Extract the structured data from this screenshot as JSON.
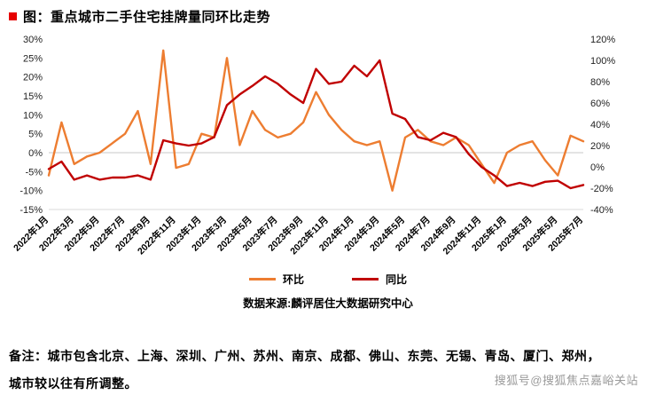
{
  "page": {
    "title": "图：重点城市二手住宅挂牌量同环比走势",
    "source": "数据来源:麟评居住大数据研究中心",
    "note_line1": "备注：城市包含北京、上海、深圳、广州、苏州、南京、成都、佛山、东莞、无锡、青岛、厦门、郑州，",
    "note_line2": "城市较以往有所调整。",
    "watermark": "搜狐号@搜狐焦点嘉峪关站"
  },
  "colors": {
    "title_bullet": "#e60000",
    "mom_line": "#ED7D31",
    "yoy_line": "#C00000",
    "zero_line": "#c9c9c9",
    "axis_line": "#d9d9d9",
    "watermark": "#9b9b9b"
  },
  "chart_data": {
    "type": "line",
    "title": "重点城市二手住宅挂牌量同环比走势",
    "legend_position": "bottom",
    "grid": "zero-line-only",
    "x_tick_every": 2,
    "categories": [
      "2022年1月",
      "2022年2月",
      "2022年3月",
      "2022年4月",
      "2022年5月",
      "2022年6月",
      "2022年7月",
      "2022年8月",
      "2022年9月",
      "2022年10月",
      "2022年11月",
      "2022年12月",
      "2023年1月",
      "2023年2月",
      "2023年3月",
      "2023年4月",
      "2023年5月",
      "2023年6月",
      "2023年7月",
      "2023年8月",
      "2023年9月",
      "2023年10月",
      "2023年11月",
      "2023年12月",
      "2024年1月",
      "2024年2月",
      "2024年3月",
      "2024年4月",
      "2024年5月",
      "2024年6月",
      "2024年7月",
      "2024年8月",
      "2024年9月",
      "2024年10月",
      "2024年11月",
      "2024年12月",
      "2025年1月",
      "2025年2月",
      "2025年3月",
      "2025年4月",
      "2025年5月",
      "2025年6月",
      "2025年7月"
    ],
    "left_axis": {
      "min": -15,
      "max": 30,
      "ticks": [
        "30%",
        "25%",
        "20%",
        "15%",
        "10%",
        "5%",
        "0%",
        "-5%",
        "-10%",
        "-15%"
      ]
    },
    "right_axis": {
      "min": -40,
      "max": 120,
      "ticks": [
        "120%",
        "100%",
        "80%",
        "60%",
        "40%",
        "20%",
        "0%",
        "-20%",
        "-40%"
      ]
    },
    "series": [
      {
        "name": "环比",
        "axis": "left",
        "color": "#ED7D31",
        "values": [
          -6,
          8,
          -3,
          -1,
          0,
          2.5,
          5,
          11,
          -3,
          27,
          -4,
          -3,
          5,
          4,
          25,
          2,
          11,
          6,
          4,
          5,
          8,
          16,
          10,
          6,
          3,
          2,
          3,
          -10,
          4,
          6,
          3,
          2,
          4,
          2,
          -3,
          -8,
          0,
          2,
          3,
          -2,
          -6,
          4.5,
          3
        ]
      },
      {
        "name": "同比",
        "axis": "right",
        "color": "#C00000",
        "values": [
          -2,
          5,
          -12,
          -8,
          -12,
          -10,
          -10,
          -8,
          -12,
          25,
          22,
          20,
          22,
          28,
          58,
          68,
          76,
          85,
          78,
          68,
          60,
          92,
          78,
          80,
          95,
          85,
          100,
          50,
          45,
          28,
          25,
          32,
          28,
          12,
          0,
          -8,
          -18,
          -15,
          -18,
          -14,
          -13,
          -20,
          -17
        ]
      }
    ]
  }
}
